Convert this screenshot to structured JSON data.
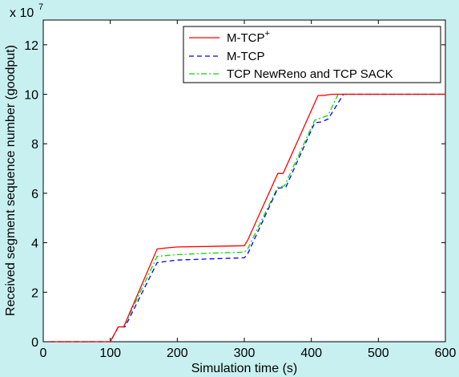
{
  "chart_data": {
    "type": "line",
    "xlabel": "Simulation time (s)",
    "ylabel": "Received segment sequence number (goodput)",
    "xlim": [
      0,
      600
    ],
    "ylim": [
      0,
      130000000
    ],
    "x_ticks": [
      "0",
      "100",
      "200",
      "300",
      "400",
      "500",
      "600"
    ],
    "y_ticks": [
      "0",
      "2",
      "4",
      "6",
      "8",
      "10",
      "12"
    ],
    "y_tick_values": [
      0,
      2,
      4,
      6,
      8,
      10,
      12
    ],
    "x_tick_values": [
      0,
      100,
      200,
      300,
      400,
      500,
      600
    ],
    "y_multiplier": {
      "base": "x 10",
      "exponent": "7"
    },
    "grid": false,
    "legend_position": "top-right",
    "series": [
      {
        "name": "M-TCP",
        "name_sup": "+",
        "color": "#ff0000",
        "dash": "solid",
        "points": [
          [
            10,
            0
          ],
          [
            100,
            0
          ],
          [
            112,
            6000000
          ],
          [
            120,
            6000000
          ],
          [
            170,
            37500000
          ],
          [
            180,
            37800000
          ],
          [
            200,
            38300000
          ],
          [
            250,
            38500000
          ],
          [
            300,
            38800000
          ],
          [
            305,
            41000000
          ],
          [
            350,
            68000000
          ],
          [
            358,
            68000000
          ],
          [
            410,
            99500000
          ],
          [
            420,
            99600000
          ],
          [
            430,
            100000000
          ],
          [
            600,
            100000000
          ]
        ]
      },
      {
        "name": "M-TCP",
        "color": "#0000ff",
        "dash": "dashed",
        "points": [
          [
            10,
            0
          ],
          [
            100,
            0
          ],
          [
            112,
            6000000
          ],
          [
            122,
            6000000
          ],
          [
            170,
            32000000
          ],
          [
            200,
            33000000
          ],
          [
            250,
            33500000
          ],
          [
            300,
            33900000
          ],
          [
            305,
            35500000
          ],
          [
            350,
            62000000
          ],
          [
            362,
            62500000
          ],
          [
            405,
            88500000
          ],
          [
            415,
            88800000
          ],
          [
            425,
            90000000
          ],
          [
            448,
            100000000
          ],
          [
            600,
            100000000
          ]
        ]
      },
      {
        "name": "TCP NewReno and TCP SACK",
        "color": "#00dd00",
        "dash": "dashdot",
        "points": [
          [
            10,
            0
          ],
          [
            100,
            0
          ],
          [
            112,
            6000000
          ],
          [
            120,
            6000000
          ],
          [
            170,
            34500000
          ],
          [
            200,
            35200000
          ],
          [
            250,
            35800000
          ],
          [
            300,
            36200000
          ],
          [
            305,
            37500000
          ],
          [
            350,
            62500000
          ],
          [
            360,
            63000000
          ],
          [
            405,
            89500000
          ],
          [
            415,
            90500000
          ],
          [
            425,
            91500000
          ],
          [
            440,
            100000000
          ],
          [
            600,
            100000000
          ]
        ]
      }
    ]
  }
}
